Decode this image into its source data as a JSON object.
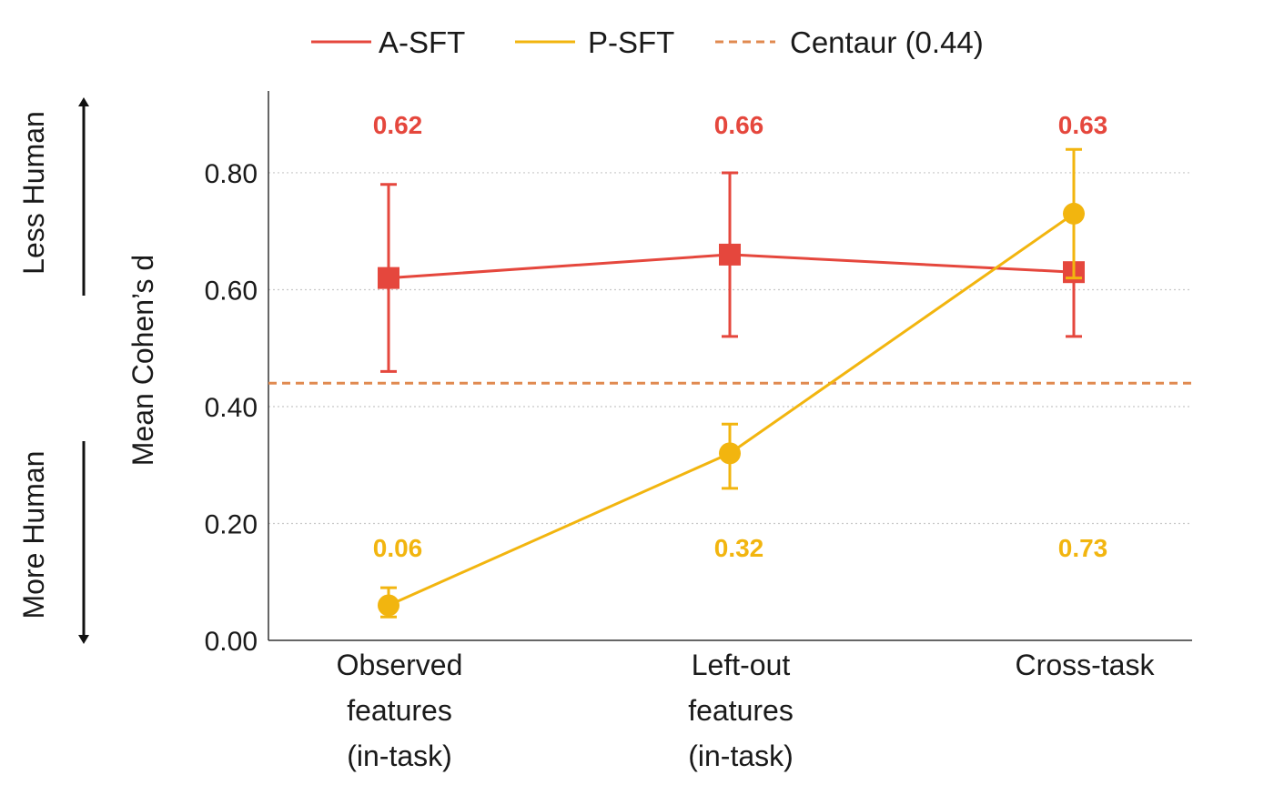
{
  "chart_data": {
    "type": "line",
    "ylabel": "Mean Cohen’s d",
    "xlabel": "",
    "ylim": [
      0,
      0.94
    ],
    "yticks": [
      0.0,
      0.2,
      0.4,
      0.6,
      0.8
    ],
    "ytick_labels": [
      "0.00",
      "0.20",
      "0.40",
      "0.60",
      "0.80"
    ],
    "grid": "horizontal dotted",
    "legend_position": "top",
    "categories": [
      [
        "Observed",
        "features",
        "(in-task)"
      ],
      [
        "Left-out",
        "features",
        "(in-task)"
      ],
      [
        "Cross-task"
      ]
    ],
    "series": [
      {
        "name": "A-SFT",
        "color": "#e5473d",
        "marker": "square",
        "values": [
          0.62,
          0.66,
          0.63
        ],
        "err_low": [
          0.46,
          0.52,
          0.52
        ],
        "err_high": [
          0.78,
          0.8,
          0.74
        ],
        "labels": [
          "0.62",
          "0.66",
          "0.63"
        ]
      },
      {
        "name": "P-SFT",
        "color": "#f2b50f",
        "marker": "circle",
        "values": [
          0.06,
          0.32,
          0.73
        ],
        "err_low": [
          0.04,
          0.26,
          0.62
        ],
        "err_high": [
          0.09,
          0.37,
          0.84
        ],
        "labels": [
          "0.06",
          "0.32",
          "0.73"
        ]
      }
    ],
    "reference_line": {
      "name": "Centaur (0.44)",
      "value": 0.44,
      "color": "#e08a50",
      "style": "dashed"
    },
    "side_labels": {
      "top": "Less Human",
      "bottom": "More Human"
    }
  }
}
